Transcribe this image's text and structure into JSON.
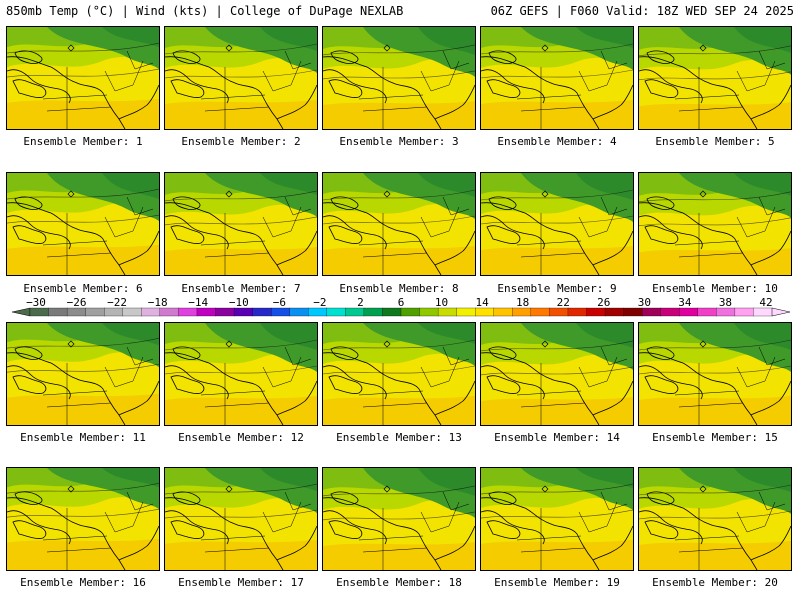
{
  "header": {
    "left": "850mb Temp (°C) | Wind (kts) | College of DuPage NEXLAB",
    "right": "06Z GEFS | F060 Valid: 18Z WED SEP 24 2025"
  },
  "members": [
    {
      "label": "Ensemble Member: 1",
      "warmth": 0.55
    },
    {
      "label": "Ensemble Member: 2",
      "warmth": 0.5
    },
    {
      "label": "Ensemble Member: 3",
      "warmth": 0.45
    },
    {
      "label": "Ensemble Member: 4",
      "warmth": 0.5
    },
    {
      "label": "Ensemble Member: 5",
      "warmth": 0.4
    },
    {
      "label": "Ensemble Member: 6",
      "warmth": 0.55
    },
    {
      "label": "Ensemble Member: 7",
      "warmth": 0.45
    },
    {
      "label": "Ensemble Member: 8",
      "warmth": 0.5
    },
    {
      "label": "Ensemble Member: 9",
      "warmth": 0.5
    },
    {
      "label": "Ensemble Member: 10",
      "warmth": 0.4
    },
    {
      "label": "Ensemble Member: 11",
      "warmth": 0.6
    },
    {
      "label": "Ensemble Member: 12",
      "warmth": 0.5
    },
    {
      "label": "Ensemble Member: 13",
      "warmth": 0.5
    },
    {
      "label": "Ensemble Member: 14",
      "warmth": 0.45
    },
    {
      "label": "Ensemble Member: 15",
      "warmth": 0.5
    },
    {
      "label": "Ensemble Member: 16",
      "warmth": 0.6
    },
    {
      "label": "Ensemble Member: 17",
      "warmth": 0.55
    },
    {
      "label": "Ensemble Member: 18",
      "warmth": 0.45
    },
    {
      "label": "Ensemble Member: 19",
      "warmth": 0.55
    },
    {
      "label": "Ensemble Member: 20",
      "warmth": 0.5
    }
  ],
  "colorbar": {
    "unit": "°C",
    "labels": [
      "−30",
      "−26",
      "−22",
      "−18",
      "−14",
      "−10",
      "−6",
      "−2",
      "2",
      "6",
      "10",
      "14",
      "18",
      "22",
      "26",
      "30",
      "34",
      "38",
      "42"
    ],
    "colors": [
      "#4c6a4c",
      "#7a7a7a",
      "#8c8c8c",
      "#a0a0a0",
      "#b4b4b4",
      "#c8c8c8",
      "#e0b0e0",
      "#d07ad0",
      "#e040e0",
      "#c000c0",
      "#8c00a0",
      "#5a00b4",
      "#2828c8",
      "#1450e6",
      "#0a90f0",
      "#00c8ff",
      "#00e0d0",
      "#00c890",
      "#00a050",
      "#10781e",
      "#50a000",
      "#90c800",
      "#c8dc00",
      "#f0f000",
      "#ffe000",
      "#ffc400",
      "#ffa000",
      "#ff7800",
      "#f05000",
      "#e02800",
      "#c80000",
      "#a00000",
      "#800000",
      "#a0005a",
      "#c8007a",
      "#e000a0",
      "#f040c8",
      "#f070e0",
      "#ffa0f0",
      "#ffd8ff"
    ]
  }
}
